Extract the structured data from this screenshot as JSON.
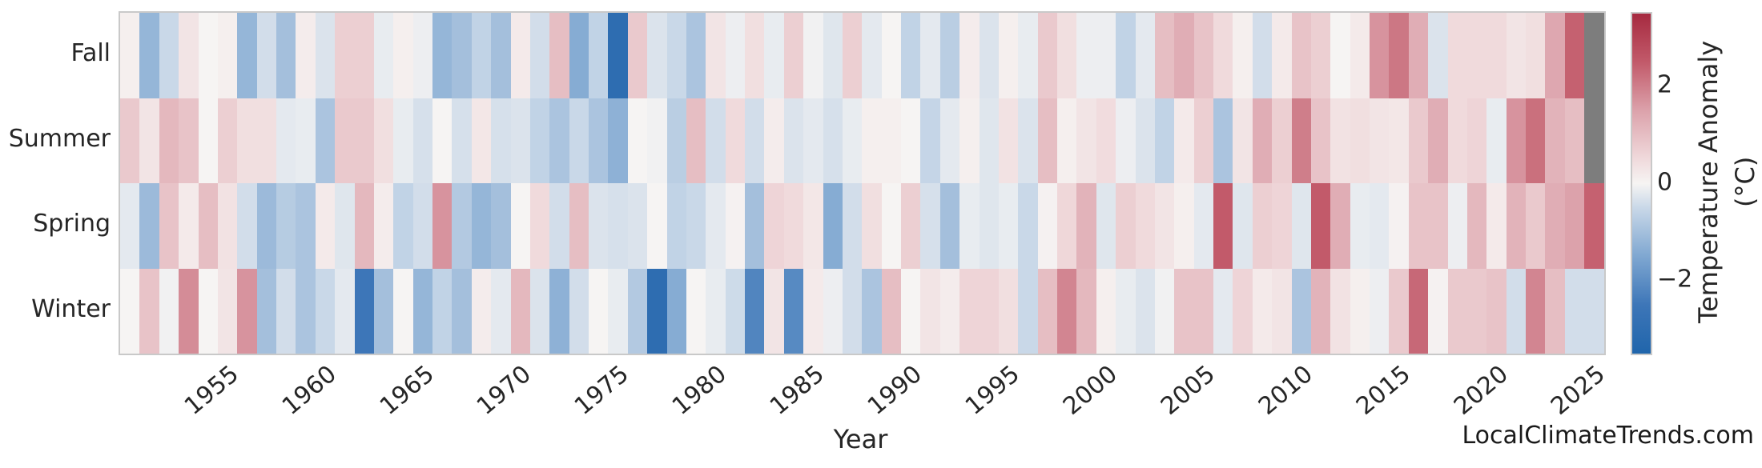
{
  "watermark": "LocalClimateTrends.com",
  "chart_data": {
    "type": "heatmap",
    "title": "",
    "xlabel": "Year",
    "x_start": 1950,
    "x_end": 2025,
    "x_ticks": [
      1955,
      1960,
      1965,
      1970,
      1975,
      1980,
      1985,
      1990,
      1995,
      2000,
      2005,
      2010,
      2015,
      2020,
      2025
    ],
    "rows": [
      "Fall",
      "Summer",
      "Spring",
      "Winter"
    ],
    "series": [
      {
        "name": "Fall",
        "values": [
          0.1,
          -1.2,
          -0.5,
          0.3,
          0,
          0.1,
          -1.2,
          -0.4,
          -1,
          0.15,
          -0.3,
          0.7,
          0.7,
          -0.15,
          0.1,
          -0.1,
          -1.2,
          -1,
          -0.6,
          -1,
          0.2,
          -0.4,
          1,
          -1.4,
          -0.6,
          -3,
          0.8,
          -0.3,
          -0.5,
          -0.9,
          0.3,
          -0.1,
          0.4,
          -0.15,
          0.7,
          -0.05,
          -0.25,
          0.7,
          -0.2,
          0,
          -0.6,
          -0.2,
          -0.7,
          0.15,
          -0.3,
          0.1,
          -0.15,
          0.8,
          0.4,
          -0.1,
          -0.1,
          -0.6,
          -0.2,
          1,
          1.3,
          0.9,
          0.5,
          0.1,
          -0.4,
          0.2,
          0.9,
          0.7,
          0,
          0.2,
          1.7,
          2.1,
          1.3,
          -0.3,
          0.5,
          0.5,
          0.5,
          0.3,
          0.4,
          1.4,
          2.4,
          null
        ]
      },
      {
        "name": "Summer",
        "values": [
          0.8,
          0.3,
          1.1,
          0.9,
          0,
          0.7,
          0.4,
          0.4,
          -0.2,
          -0.15,
          -0.9,
          0.8,
          0.8,
          0.4,
          -0.15,
          -0.35,
          0,
          -0.35,
          0.25,
          -0.35,
          -0.3,
          -0.6,
          -0.9,
          -0.5,
          -0.9,
          -1.3,
          0,
          -0.05,
          -0.7,
          1,
          -0.4,
          0.5,
          -0.4,
          0.15,
          -0.3,
          -0.2,
          -0.35,
          -0.15,
          0.1,
          0.1,
          0,
          -0.55,
          -0.2,
          0.1,
          -0.25,
          0.35,
          -0.3,
          1,
          0.1,
          0.3,
          0.45,
          -0.1,
          -0.3,
          -0.6,
          0.2,
          0.7,
          -0.9,
          0.3,
          1.3,
          0.7,
          2,
          0.9,
          0.35,
          0.4,
          0.3,
          0.25,
          0.8,
          1.3,
          0.5,
          0.6,
          -0.15,
          1.7,
          2.2,
          1.2,
          1,
          null
        ]
      },
      {
        "name": "Spring",
        "values": [
          -0.2,
          -1.1,
          0.9,
          0.2,
          1,
          0.35,
          -0.4,
          -1.1,
          -0.75,
          -0.9,
          0.2,
          -0.25,
          1.1,
          0.15,
          -0.6,
          -0.4,
          1.7,
          -0.8,
          -1.2,
          -1,
          0,
          0.5,
          -0.4,
          1,
          -0.3,
          -0.35,
          -0.3,
          0,
          -0.6,
          -0.5,
          -0.2,
          0.05,
          -1,
          0.6,
          0.5,
          0.25,
          -1.4,
          -0.4,
          0.4,
          0,
          0.7,
          -0.35,
          -1,
          -0.15,
          -0.25,
          -0.15,
          -0.5,
          0.05,
          0.55,
          1.2,
          -0.25,
          0.7,
          0.5,
          0.3,
          0.1,
          -0.2,
          2.5,
          -0.25,
          0.7,
          0.6,
          -0.25,
          2.5,
          1.3,
          -0.15,
          -0.2,
          0.05,
          0.9,
          0.9,
          -0.1,
          1.1,
          0.2,
          1.2,
          0.8,
          1.3,
          1.5,
          2.4
        ]
      },
      {
        "name": "Winter",
        "values": [
          0,
          0.9,
          -0.05,
          1.8,
          0,
          0.3,
          1.7,
          -1,
          -0.4,
          -0.9,
          -0.5,
          -0.2,
          -2.5,
          -1,
          0,
          -1.2,
          -0.6,
          -1,
          0.15,
          -0.2,
          1.1,
          -0.3,
          -1.3,
          -0.4,
          0,
          -0.15,
          -0.8,
          -3,
          -1.4,
          0,
          -0.15,
          -0.45,
          -2.2,
          0.3,
          -2.1,
          0.2,
          -0.1,
          -0.4,
          -0.9,
          1,
          0,
          0.3,
          0.15,
          0.6,
          0.6,
          0.4,
          -0.5,
          1,
          1.9,
          1.1,
          0.1,
          -0.15,
          -0.3,
          -0.05,
          0.9,
          0.9,
          -0.2,
          0.6,
          0.2,
          0.3,
          -0.9,
          1.2,
          0.35,
          0.1,
          -0.1,
          0.8,
          2.3,
          0.05,
          0.8,
          0.8,
          0.9,
          -0.4,
          1.9,
          1,
          -0.4,
          -0.4
        ]
      }
    ],
    "colorbar": {
      "label": "Temperature Anomaly (°C)",
      "tick_labels": [
        "2",
        "0",
        "−2"
      ],
      "tick_values": [
        2,
        0,
        -2
      ],
      "vmin": -3.5,
      "vmax": 3.5
    },
    "colors": {
      "missing": "#7d7d7d",
      "frame": "#c9c9c9",
      "text": "#262626",
      "colormap_stops": [
        {
          "t": 0.0,
          "hex": "#2065ab"
        },
        {
          "t": 0.143,
          "hex": "#3d76b8"
        },
        {
          "t": 0.286,
          "hex": "#7fa7d1"
        },
        {
          "t": 0.429,
          "hex": "#c9d8e8"
        },
        {
          "t": 0.5,
          "hex": "#f6f4f3"
        },
        {
          "t": 0.571,
          "hex": "#f0dadc"
        },
        {
          "t": 0.714,
          "hex": "#dca2ab"
        },
        {
          "t": 0.857,
          "hex": "#c25a6a"
        },
        {
          "t": 1.0,
          "hex": "#a62a40"
        }
      ],
      "legend_position": "right"
    }
  }
}
